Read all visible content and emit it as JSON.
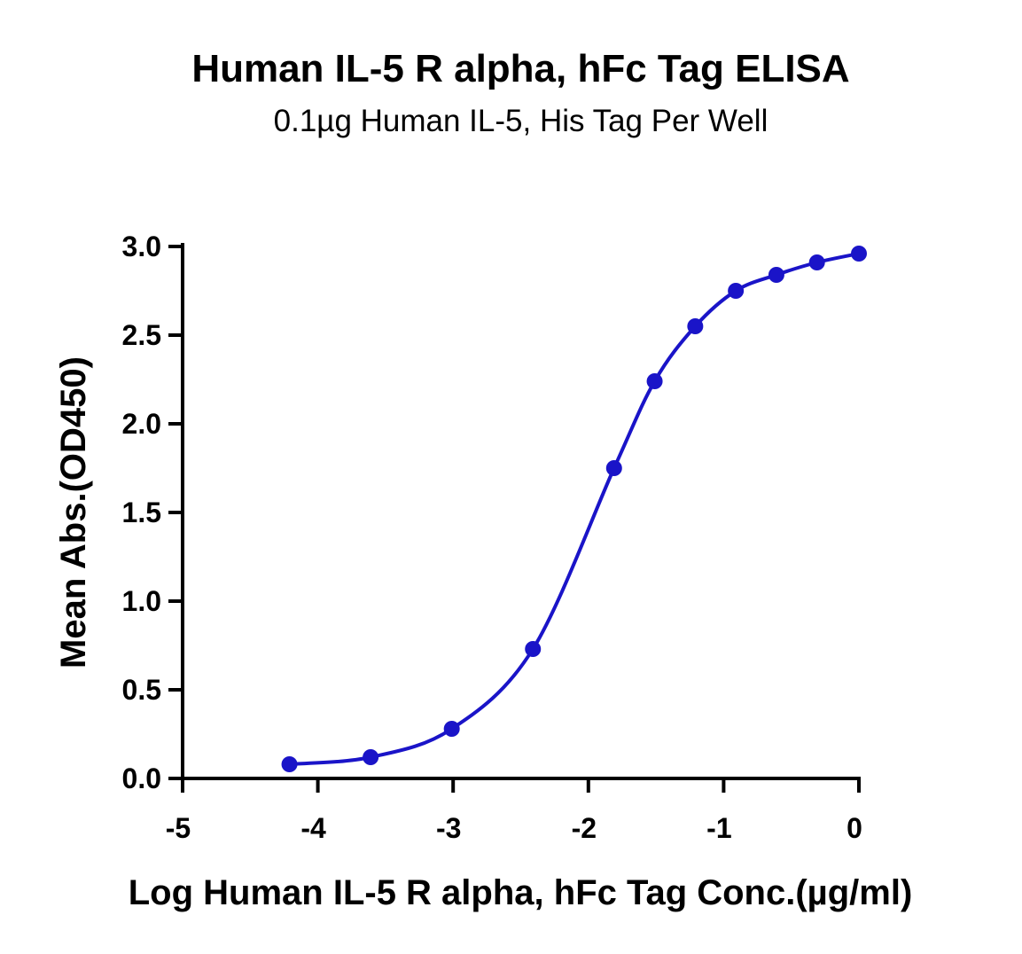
{
  "chart_data": {
    "type": "scatter",
    "title": "Human IL-5 R alpha, hFc Tag ELISA",
    "subtitle": "0.1µg Human IL-5, His Tag Per Well",
    "xlabel": "Log Human IL-5 R alpha, hFc Tag Conc.(µg/ml)",
    "ylabel": "Mean Abs.(OD450)",
    "xlim": [
      -5,
      0
    ],
    "ylim": [
      0,
      3.0
    ],
    "x_ticks": [
      -5,
      -4,
      -3,
      -2,
      -1,
      0
    ],
    "x_tick_labels": [
      "-5",
      "-4",
      "-3",
      "-2",
      "-1",
      "0"
    ],
    "y_ticks": [
      0,
      0.5,
      1.0,
      1.5,
      2.0,
      2.5,
      3.0
    ],
    "y_tick_labels": [
      "0.0",
      "0.5",
      "1.0",
      "1.5",
      "2.0",
      "2.5",
      "3.0"
    ],
    "grid": false,
    "legend": "none",
    "series": [
      {
        "color": "#1a14c8",
        "fit": "four-parameter sigmoidal curve",
        "points": [
          {
            "x": -4.21,
            "y": 0.08
          },
          {
            "x": -3.61,
            "y": 0.12
          },
          {
            "x": -3.01,
            "y": 0.28
          },
          {
            "x": -2.41,
            "y": 0.73
          },
          {
            "x": -1.81,
            "y": 1.75
          },
          {
            "x": -1.51,
            "y": 2.24
          },
          {
            "x": -1.21,
            "y": 2.55
          },
          {
            "x": -0.91,
            "y": 2.75
          },
          {
            "x": -0.61,
            "y": 2.84
          },
          {
            "x": -0.31,
            "y": 2.91
          },
          {
            "x": 0.0,
            "y": 2.96
          }
        ]
      }
    ]
  }
}
